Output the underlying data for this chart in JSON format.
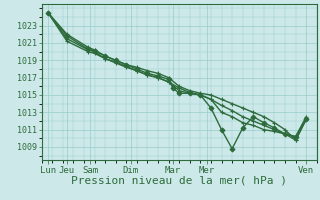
{
  "bg_color": "#cce8e8",
  "grid_color": "#99cccc",
  "line_color": "#2d6b3c",
  "xlabel": "Pression niveau de la mer( hPa )",
  "xlabel_fontsize": 8,
  "yticks": [
    1009,
    1011,
    1013,
    1015,
    1017,
    1019,
    1021,
    1023
  ],
  "ylim": [
    1007.5,
    1025.5
  ],
  "xlim": [
    0,
    13
  ],
  "xtick_labels": [
    "Lun",
    "Jeu",
    "Sam",
    "Dim",
    "Mar",
    "Mer",
    "Ven"
  ],
  "xtick_positions": [
    0.3,
    1.2,
    2.3,
    4.2,
    6.2,
    7.8,
    12.5
  ],
  "series": [
    {
      "x": [
        0.3,
        1.2,
        2.2,
        2.5,
        3.0,
        3.5,
        4.0,
        4.5,
        5.0,
        5.5,
        6.0,
        6.2,
        6.5,
        7.0,
        7.5,
        8.0,
        8.5,
        9.0,
        9.5,
        10.0,
        10.5,
        11.0,
        11.5,
        12.0,
        12.5
      ],
      "y": [
        1024.5,
        1021.8,
        1020.3,
        1020.1,
        1019.5,
        1019.0,
        1018.5,
        1018.0,
        1017.5,
        1017.2,
        1016.8,
        1015.8,
        1015.2,
        1015.2,
        1015.0,
        1013.5,
        1011.0,
        1008.8,
        1011.2,
        1012.5,
        1011.8,
        1011.2,
        1010.5,
        1010.2,
        1012.2
      ],
      "marker": "D",
      "ms": 2.5,
      "lw": 1.0
    },
    {
      "x": [
        0.3,
        1.2,
        2.2,
        2.5,
        3.0,
        3.5,
        4.0,
        4.5,
        5.0,
        5.5,
        6.0,
        6.5,
        7.0,
        7.5,
        8.0,
        8.5,
        9.0,
        9.5,
        10.0,
        10.5,
        11.0,
        11.5,
        12.0,
        12.5
      ],
      "y": [
        1024.5,
        1021.5,
        1020.2,
        1020.0,
        1019.2,
        1018.8,
        1018.3,
        1017.8,
        1017.3,
        1017.0,
        1016.5,
        1015.5,
        1015.2,
        1015.0,
        1014.5,
        1013.0,
        1012.5,
        1011.8,
        1011.5,
        1011.0,
        1010.8,
        1010.5,
        1010.2,
        1012.5
      ],
      "marker": "+",
      "ms": 3.5,
      "lw": 1.0
    },
    {
      "x": [
        0.3,
        1.2,
        2.2,
        2.5,
        3.0,
        3.5,
        4.0,
        4.5,
        5.0,
        5.5,
        6.0,
        6.5,
        7.0,
        7.5,
        8.0,
        8.5,
        9.0,
        9.5,
        10.0,
        10.5,
        11.0,
        11.5,
        12.0,
        12.5
      ],
      "y": [
        1024.5,
        1022.0,
        1020.5,
        1020.2,
        1019.5,
        1019.0,
        1018.5,
        1018.2,
        1017.8,
        1017.5,
        1017.0,
        1016.0,
        1015.5,
        1015.2,
        1015.0,
        1014.5,
        1014.0,
        1013.5,
        1013.0,
        1012.5,
        1011.8,
        1011.0,
        1009.8,
        1012.2
      ],
      "marker": "+",
      "ms": 3.5,
      "lw": 1.0
    },
    {
      "x": [
        0.3,
        1.2,
        2.2,
        2.5,
        3.0,
        3.5,
        4.0,
        4.5,
        5.0,
        5.5,
        6.0,
        6.5,
        7.0,
        7.5,
        8.0,
        8.5,
        9.0,
        9.5,
        10.0,
        10.5,
        11.0,
        11.5,
        12.0,
        12.5
      ],
      "y": [
        1024.5,
        1021.2,
        1020.0,
        1019.8,
        1019.2,
        1018.7,
        1018.2,
        1017.8,
        1017.3,
        1017.0,
        1016.5,
        1015.8,
        1015.3,
        1015.0,
        1014.5,
        1013.8,
        1013.2,
        1012.5,
        1012.0,
        1011.5,
        1011.0,
        1010.5,
        1009.8,
        1012.2
      ],
      "marker": "+",
      "ms": 3.5,
      "lw": 1.0
    }
  ]
}
